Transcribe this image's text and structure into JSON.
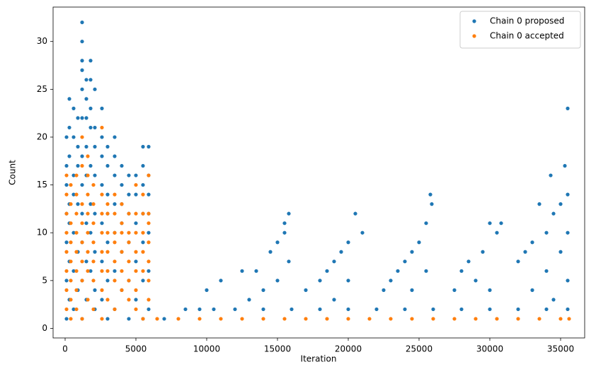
{
  "chart_data": {
    "type": "scatter",
    "xlabel": "Iteration",
    "ylabel": "Count",
    "xlim": [
      -850,
      36700
    ],
    "ylim": [
      -1,
      33.6
    ],
    "xticks": [
      0,
      5000,
      10000,
      15000,
      20000,
      25000,
      30000,
      35000
    ],
    "yticks": [
      0,
      5,
      10,
      15,
      20,
      25,
      30
    ],
    "legend": "upper right",
    "series": [
      {
        "name": "Chain 0 proposed",
        "color": "#1f77b4",
        "x": [
          100,
          100,
          100,
          100,
          100,
          100,
          100,
          300,
          300,
          300,
          300,
          300,
          300,
          300,
          600,
          600,
          600,
          600,
          600,
          600,
          600,
          900,
          900,
          900,
          900,
          900,
          900,
          1200,
          1200,
          1200,
          1200,
          1200,
          1200,
          1200,
          1200,
          1200,
          1200,
          1200,
          1200,
          1500,
          1500,
          1500,
          1500,
          1500,
          1500,
          1500,
          1500,
          1800,
          1800,
          1800,
          1800,
          1800,
          1800,
          1800,
          1800,
          2100,
          2100,
          2100,
          2100,
          2100,
          2100,
          2100,
          2100,
          2600,
          2600,
          2600,
          2600,
          2600,
          2600,
          2600,
          3000,
          3000,
          3000,
          3000,
          3000,
          3000,
          3000,
          3500,
          3500,
          3500,
          3500,
          3500,
          3500,
          3500,
          4000,
          4000,
          4000,
          4000,
          4000,
          4000,
          4500,
          4500,
          4500,
          4500,
          4500,
          4500,
          5000,
          5000,
          5000,
          5000,
          5000,
          5500,
          5500,
          5500,
          5500,
          5500,
          5500,
          5500,
          5900,
          5900,
          5900,
          5900,
          5900,
          5900,
          5900,
          7000,
          8500,
          9500,
          10000,
          10500,
          11000,
          12000,
          12500,
          13000,
          13500,
          14000,
          14000,
          14500,
          15000,
          15000,
          15500,
          15500,
          15800,
          15800,
          16000,
          17000,
          18000,
          18000,
          18500,
          19000,
          19000,
          19500,
          20000,
          20000,
          20000,
          20500,
          21000,
          22000,
          22500,
          23000,
          23500,
          24000,
          24000,
          24500,
          24500,
          25000,
          25500,
          25500,
          25800,
          25900,
          26000,
          27500,
          28000,
          28000,
          28500,
          29000,
          29500,
          30000,
          30000,
          30000,
          30500,
          30800,
          32000,
          32000,
          32500,
          33000,
          33000,
          33500,
          34000,
          34000,
          34000,
          34300,
          34500,
          34500,
          35000,
          35000,
          35300,
          35500,
          35500,
          35500,
          35500,
          35500
        ],
        "values": [
          20,
          17,
          15,
          12,
          9,
          5,
          1,
          24,
          21,
          18,
          13,
          11,
          7,
          3,
          23,
          20,
          16,
          14,
          10,
          6,
          2,
          22,
          19,
          17,
          13,
          8,
          4,
          32,
          30,
          28,
          27,
          25,
          22,
          18,
          15,
          12,
          9,
          5,
          1,
          26,
          24,
          22,
          19,
          16,
          11,
          7,
          3,
          28,
          26,
          23,
          21,
          17,
          13,
          10,
          6,
          25,
          21,
          19,
          16,
          12,
          8,
          4,
          2,
          23,
          20,
          18,
          15,
          11,
          7,
          3,
          19,
          17,
          14,
          12,
          9,
          5,
          1,
          20,
          18,
          16,
          13,
          10,
          6,
          2,
          17,
          15,
          13,
          11,
          8,
          4,
          16,
          14,
          12,
          9,
          5,
          1,
          16,
          14,
          11,
          7,
          3,
          19,
          17,
          15,
          12,
          9,
          5,
          1,
          19,
          16,
          14,
          12,
          10,
          6,
          2,
          1,
          2,
          2,
          4,
          2,
          5,
          2,
          6,
          3,
          6,
          4,
          2,
          8,
          9,
          5,
          11,
          10,
          12,
          7,
          2,
          4,
          5,
          2,
          6,
          7,
          3,
          8,
          9,
          5,
          2,
          12,
          10,
          2,
          4,
          5,
          6,
          7,
          2,
          8,
          4,
          9,
          11,
          6,
          14,
          13,
          2,
          4,
          6,
          2,
          7,
          5,
          8,
          11,
          4,
          2,
          10,
          11,
          7,
          2,
          8,
          9,
          4,
          13,
          10,
          6,
          2,
          16,
          12,
          3,
          13,
          8,
          17,
          23,
          14,
          10,
          5,
          2
        ]
      },
      {
        "name": "Chain 0 accepted",
        "color": "#ff7f0e",
        "x": [
          100,
          100,
          100,
          100,
          100,
          100,
          100,
          100,
          400,
          400,
          400,
          400,
          400,
          400,
          400,
          400,
          800,
          800,
          800,
          800,
          800,
          800,
          800,
          800,
          1200,
          1200,
          1200,
          1200,
          1200,
          1200,
          1200,
          1200,
          1600,
          1600,
          1600,
          1600,
          1600,
          1600,
          1600,
          1600,
          2000,
          2000,
          2000,
          2000,
          2000,
          2000,
          2000,
          2600,
          2600,
          2600,
          2600,
          2600,
          2600,
          2600,
          2600,
          3000,
          3000,
          3000,
          3000,
          3000,
          3000,
          3500,
          3500,
          3500,
          3500,
          3500,
          3500,
          3500,
          4000,
          4000,
          4000,
          4000,
          4000,
          4000,
          4500,
          4500,
          4500,
          4500,
          4500,
          4500,
          5000,
          5000,
          5000,
          5000,
          5000,
          5000,
          5000,
          5500,
          5500,
          5500,
          5500,
          5500,
          5500,
          5900,
          5900,
          5900,
          5900,
          5900,
          5900,
          5900,
          6500,
          8000,
          9500,
          11000,
          12500,
          14000,
          15500,
          17000,
          18500,
          20000,
          21500,
          23000,
          24500,
          26000,
          27500,
          29000,
          30500,
          32000,
          33500,
          35000,
          35600
        ],
        "values": [
          16,
          14,
          12,
          10,
          8,
          6,
          4,
          2,
          15,
          13,
          11,
          9,
          7,
          5,
          3,
          1,
          16,
          14,
          12,
          10,
          8,
          6,
          4,
          2,
          20,
          17,
          13,
          11,
          9,
          7,
          5,
          1,
          18,
          16,
          14,
          12,
          10,
          8,
          6,
          3,
          15,
          13,
          11,
          9,
          7,
          5,
          2,
          21,
          14,
          12,
          10,
          8,
          6,
          4,
          1,
          13,
          12,
          10,
          8,
          6,
          3,
          14,
          12,
          10,
          9,
          7,
          5,
          2,
          13,
          11,
          10,
          8,
          6,
          4,
          12,
          10,
          9,
          7,
          5,
          3,
          15,
          12,
          10,
          8,
          6,
          4,
          2,
          14,
          12,
          10,
          8,
          6,
          1,
          16,
          12,
          11,
          9,
          7,
          5,
          3,
          1,
          1,
          1,
          1,
          1,
          1,
          1,
          1,
          1,
          1,
          1,
          1,
          1,
          1,
          1,
          1,
          1,
          1,
          1,
          1,
          1
        ]
      }
    ]
  }
}
